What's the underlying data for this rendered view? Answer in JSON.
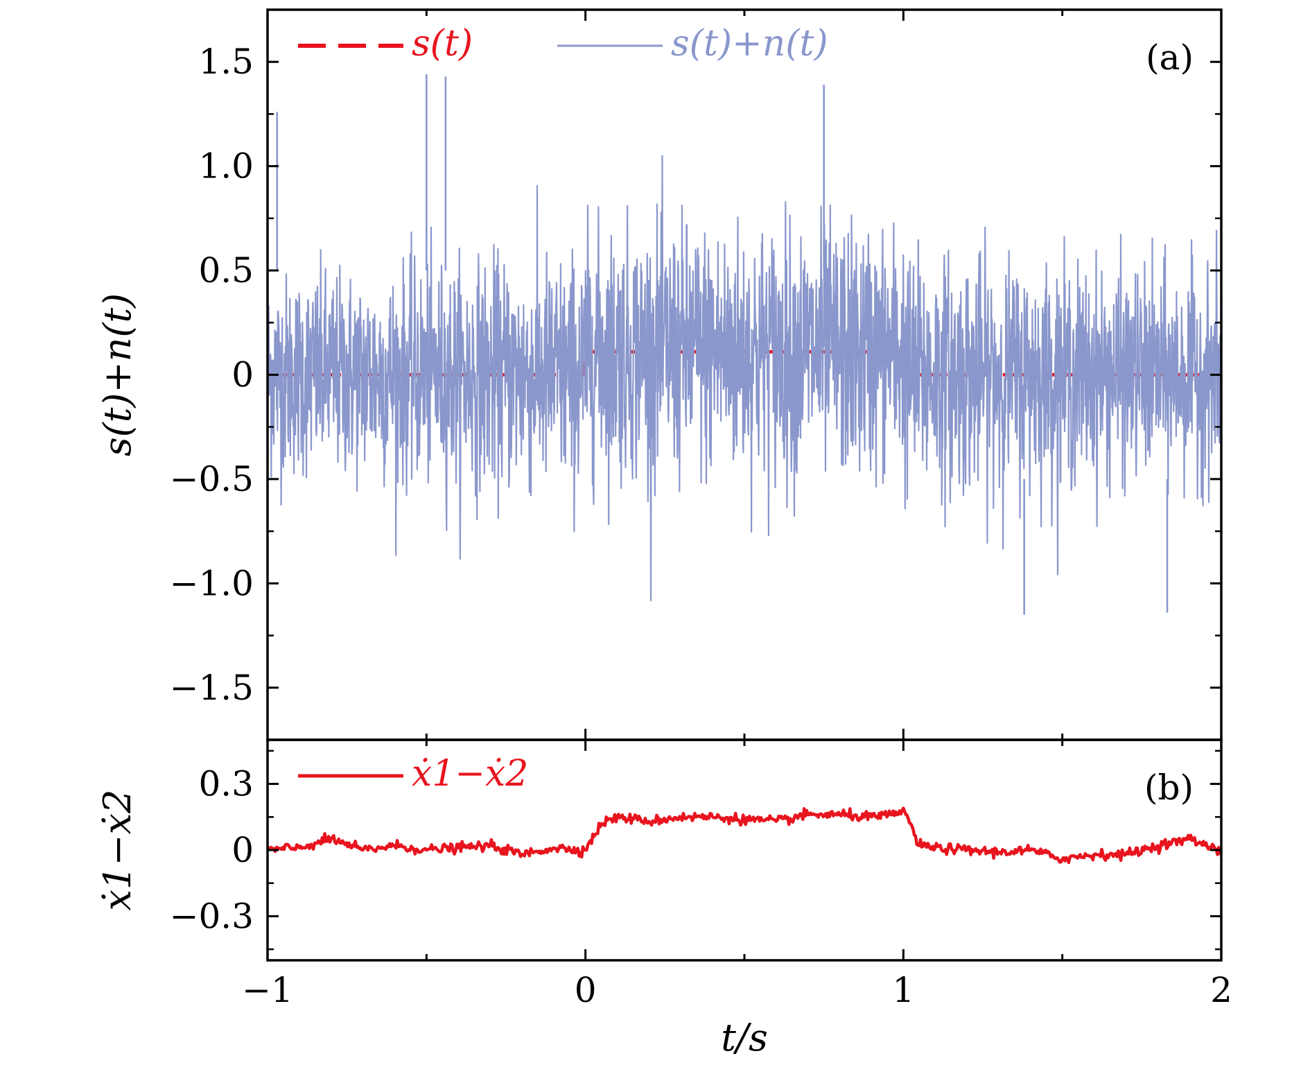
{
  "chart_data": [
    {
      "panel": "(a)",
      "type": "line",
      "ylabel": "s(t)+n(t)",
      "xlim": [
        -1,
        2
      ],
      "ylim": [
        -1.75,
        1.75
      ],
      "yticks": [
        1.5,
        1.0,
        0.5,
        0,
        -0.5,
        -1.0,
        -1.5
      ],
      "ytick_labels": [
        "1.5",
        "1.0",
        "0.5",
        "0",
        "−0.5",
        "−1.0",
        "−1.5"
      ],
      "xticks": [
        -1,
        0,
        1,
        2
      ],
      "legend": {
        "placement": "top-left",
        "orientation": "horizontal"
      },
      "grid": false,
      "series": [
        {
          "name": "s(t)",
          "style": "dashed",
          "color": "#e8141e",
          "x": [
            -1,
            0,
            0,
            0.07,
            0.99,
            1.02,
            2
          ],
          "y": [
            0,
            0,
            0.11,
            0.11,
            0.11,
            0,
            0
          ]
        },
        {
          "name": "s(t)+n(t)",
          "style": "solid",
          "color": "#8a97cc",
          "noise": {
            "base_amplitude": 0.65,
            "peak_max": 1.44,
            "peak_min": -1.15,
            "signal_offset_interval": [
              0,
              1
            ],
            "signal_offset": 0.11
          },
          "spikes": [
            {
              "x": -0.5,
              "y": 1.44
            },
            {
              "x": -0.44,
              "y": 1.43
            },
            {
              "x": 0.75,
              "y": 1.39
            },
            {
              "x": -0.97,
              "y": 1.26
            },
            {
              "x": 1.38,
              "y": -1.15
            },
            {
              "x": 1.83,
              "y": -1.14
            }
          ]
        }
      ]
    },
    {
      "panel": "(b)",
      "type": "line",
      "ylabel": "ẋ1−ẋ2",
      "xlabel": "t/s",
      "xlim": [
        -1,
        2
      ],
      "ylim": [
        -0.5,
        0.5
      ],
      "yticks": [
        0.3,
        0,
        -0.3
      ],
      "ytick_labels": [
        "0.3",
        "0",
        "−0.3"
      ],
      "xticks": [
        -1,
        0,
        1,
        2
      ],
      "xtick_labels": [
        "−1",
        "0",
        "1",
        "2"
      ],
      "legend": {
        "placement": "top-left"
      },
      "grid": false,
      "series": [
        {
          "name": "ẋ1−ẋ2",
          "style": "solid",
          "color": "#e8141e",
          "x": [
            -1,
            -0.9,
            -0.8,
            -0.7,
            -0.6,
            -0.5,
            -0.4,
            -0.3,
            -0.2,
            -0.1,
            0,
            0.05,
            0.1,
            0.2,
            0.3,
            0.4,
            0.5,
            0.6,
            0.7,
            0.8,
            0.9,
            0.98,
            1.0,
            1.05,
            1.1,
            1.2,
            1.3,
            1.4,
            1.5,
            1.6,
            1.7,
            1.8,
            1.9,
            2.0
          ],
          "y": [
            0.0,
            0.01,
            0.05,
            0.0,
            0.02,
            0.0,
            0.01,
            0.02,
            -0.02,
            0.01,
            0.0,
            0.12,
            0.15,
            0.13,
            0.15,
            0.15,
            0.14,
            0.13,
            0.16,
            0.16,
            0.15,
            0.16,
            0.19,
            0.02,
            0.01,
            0.0,
            -0.01,
            0.0,
            -0.04,
            -0.02,
            -0.02,
            0.02,
            0.05,
            0.0
          ]
        }
      ]
    }
  ]
}
